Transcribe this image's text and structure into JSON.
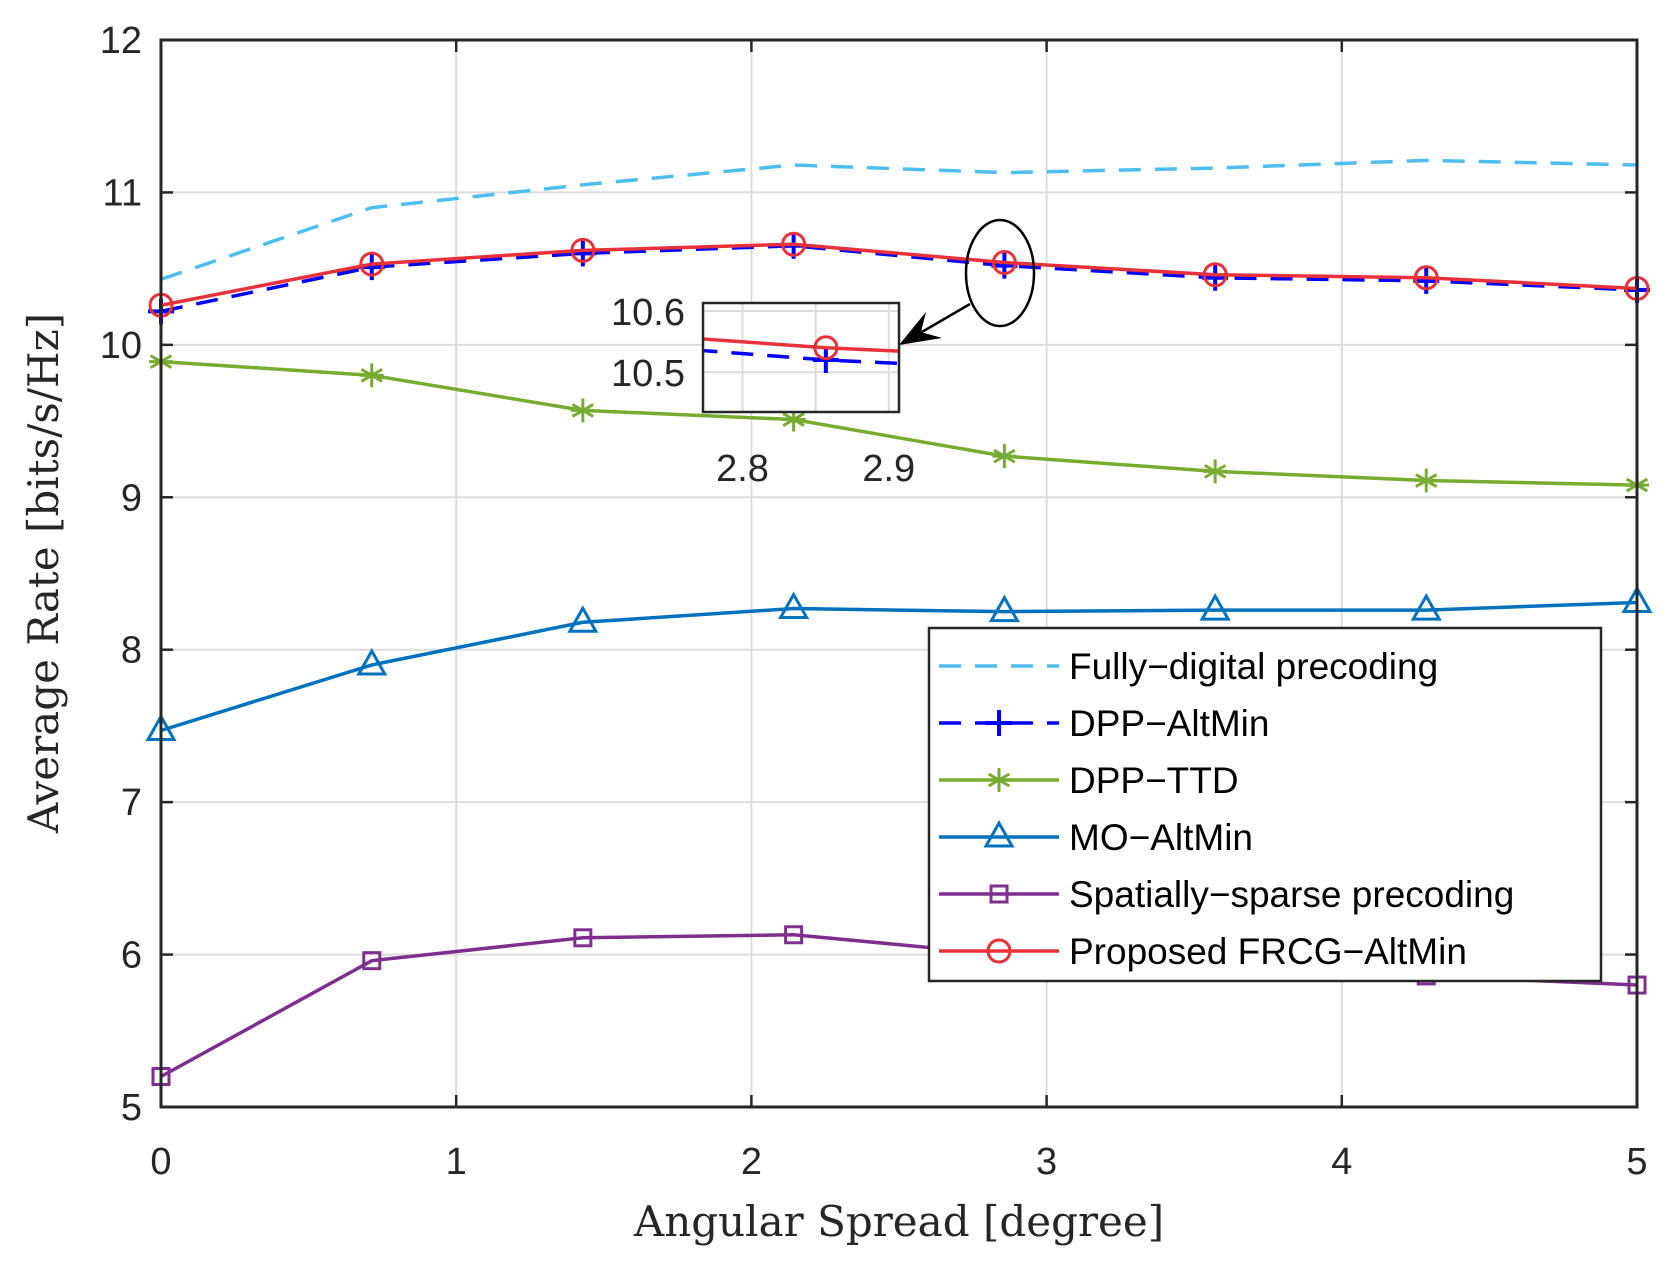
{
  "chart_data": {
    "type": "line",
    "title": "",
    "xlabel": "Angular Spread [degree]",
    "ylabel": "Average Rate [bits/s/Hz]",
    "xlim": [
      0,
      5
    ],
    "ylim": [
      5,
      12
    ],
    "grid": true,
    "legend_position": "bottom-right",
    "x_ticks": [
      "0",
      "1",
      "2",
      "3",
      "4",
      "5"
    ],
    "y_ticks": [
      "5",
      "6",
      "7",
      "8",
      "9",
      "10",
      "11",
      "12"
    ],
    "x": [
      0,
      0.714,
      1.429,
      2.143,
      2.857,
      3.571,
      4.286,
      5
    ],
    "series": [
      {
        "name": "Fully−digital precoding",
        "color": "#4DBEEE",
        "dash": "dashed",
        "marker": "none",
        "values": [
          10.43,
          10.9,
          11.05,
          11.18,
          11.13,
          11.16,
          11.21,
          11.18
        ]
      },
      {
        "name": "DPP−AltMin",
        "color": "#0000FF",
        "dash": "dashed",
        "marker": "plus",
        "values": [
          10.22,
          10.51,
          10.6,
          10.65,
          10.52,
          10.44,
          10.42,
          10.36
        ]
      },
      {
        "name": "DPP−TTD",
        "color": "#77AC30",
        "dash": "solid",
        "marker": "asterisk",
        "values": [
          9.89,
          9.8,
          9.57,
          9.51,
          9.27,
          9.17,
          9.11,
          9.08
        ]
      },
      {
        "name": "MO−AltMin",
        "color": "#0072BD",
        "dash": "solid",
        "marker": "triangle",
        "values": [
          7.47,
          7.9,
          8.18,
          8.27,
          8.25,
          8.26,
          8.26,
          8.31
        ]
      },
      {
        "name": "Spatially−sparse precoding",
        "color": "#7E2F8E",
        "dash": "solid",
        "marker": "square",
        "values": [
          5.2,
          5.96,
          6.11,
          6.13,
          6.0,
          5.92,
          5.86,
          5.8
        ]
      },
      {
        "name": "Proposed FRCG−AltMin",
        "color": "#E8313A",
        "dash": "solid",
        "marker": "circle",
        "values": [
          10.26,
          10.53,
          10.62,
          10.66,
          10.54,
          10.46,
          10.44,
          10.37
        ]
      }
    ],
    "inset": {
      "xlim": [
        2.773,
        2.907
      ],
      "ylim": [
        10.435,
        10.613
      ],
      "x_ticks": [
        "2.8",
        "2.9"
      ],
      "y_ticks": [
        "10.6",
        "10.5"
      ],
      "series_shown": [
        "DPP−AltMin",
        "Proposed FRCG−AltMin"
      ]
    }
  }
}
